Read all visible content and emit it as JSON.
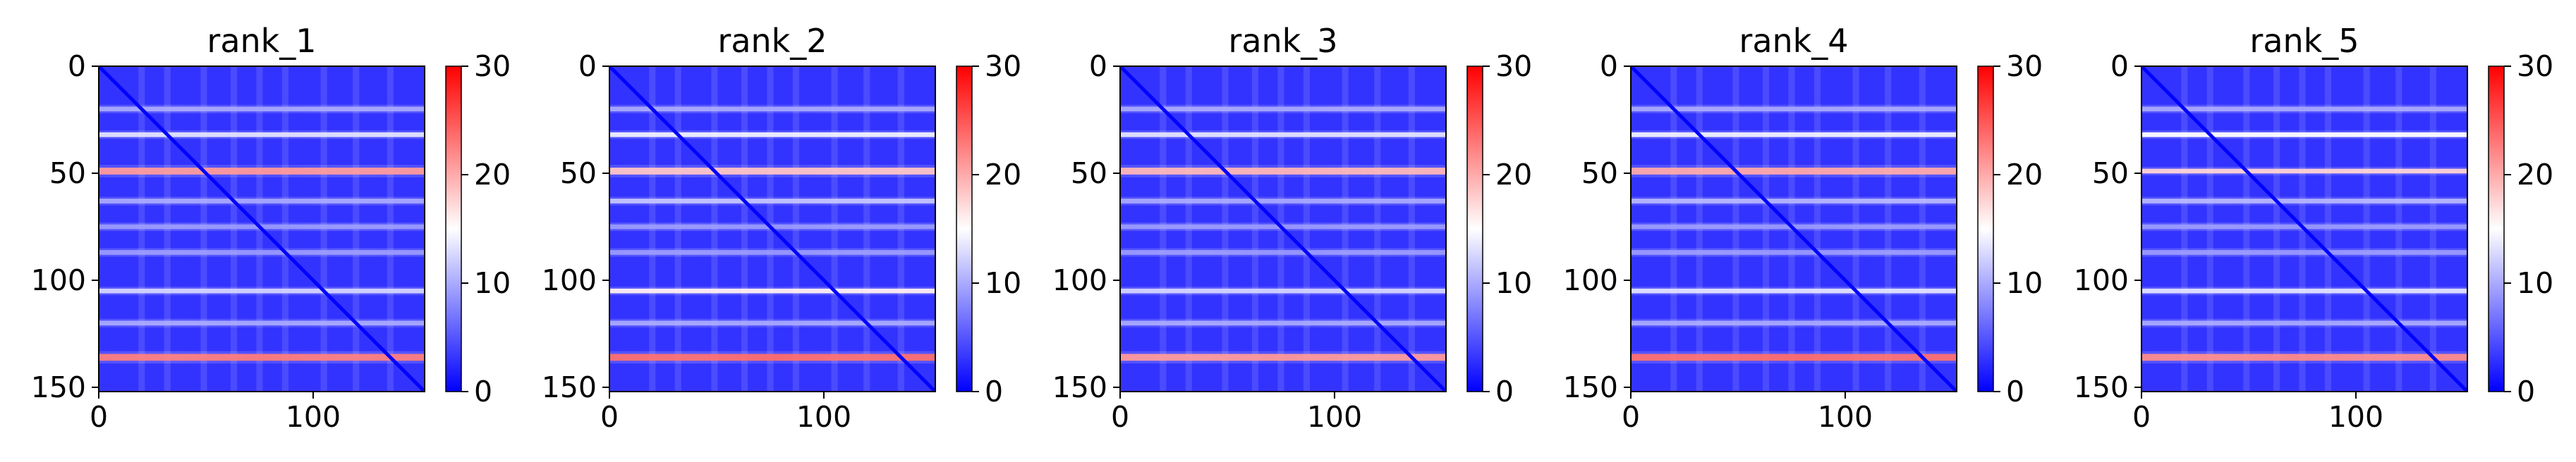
{
  "chart_data": [
    {
      "type": "heatmap",
      "title": "rank_1",
      "xlabel": "",
      "ylabel": "",
      "xlim": [
        0,
        152
      ],
      "ylim": [
        152,
        0
      ],
      "xticks": [
        0,
        100
      ],
      "yticks": [
        0,
        50,
        100,
        150
      ],
      "colorbar": {
        "range": [
          0,
          30
        ],
        "ticks": [
          0,
          10,
          20,
          30
        ],
        "colormap": "bwr"
      },
      "band_rows": [
        {
          "y": 49,
          "value": 22
        },
        {
          "y": 136,
          "value": 24
        },
        {
          "y": 32,
          "value": 13
        },
        {
          "y": 105,
          "value": 12
        },
        {
          "y": 20,
          "value": 9
        },
        {
          "y": 63,
          "value": 9
        },
        {
          "y": 75,
          "value": 8
        },
        {
          "y": 87,
          "value": 8
        },
        {
          "y": 120,
          "value": 9
        }
      ],
      "diagonal_value": 0
    },
    {
      "type": "heatmap",
      "title": "rank_2",
      "xlabel": "",
      "ylabel": "",
      "xlim": [
        0,
        152
      ],
      "ylim": [
        152,
        0
      ],
      "xticks": [
        0,
        100
      ],
      "yticks": [
        0,
        50,
        100,
        150
      ],
      "colorbar": {
        "range": [
          0,
          30
        ],
        "ticks": [
          0,
          10,
          20,
          30
        ],
        "colormap": "bwr"
      },
      "band_rows": [
        {
          "y": 49,
          "value": 19
        },
        {
          "y": 136,
          "value": 25
        },
        {
          "y": 32,
          "value": 14
        },
        {
          "y": 105,
          "value": 16
        },
        {
          "y": 20,
          "value": 9
        },
        {
          "y": 63,
          "value": 11
        },
        {
          "y": 75,
          "value": 8
        },
        {
          "y": 87,
          "value": 8
        },
        {
          "y": 120,
          "value": 9
        }
      ],
      "diagonal_value": 0
    },
    {
      "type": "heatmap",
      "title": "rank_3",
      "xlabel": "",
      "ylabel": "",
      "xlim": [
        0,
        152
      ],
      "ylim": [
        152,
        0
      ],
      "xticks": [
        0,
        100
      ],
      "yticks": [
        0,
        50,
        100,
        150
      ],
      "colorbar": {
        "range": [
          0,
          30
        ],
        "ticks": [
          0,
          10,
          20,
          30
        ],
        "colormap": "bwr"
      },
      "band_rows": [
        {
          "y": 49,
          "value": 20
        },
        {
          "y": 136,
          "value": 22
        },
        {
          "y": 32,
          "value": 13
        },
        {
          "y": 105,
          "value": 12
        },
        {
          "y": 20,
          "value": 9
        },
        {
          "y": 63,
          "value": 9
        },
        {
          "y": 75,
          "value": 8
        },
        {
          "y": 87,
          "value": 8
        },
        {
          "y": 120,
          "value": 9
        }
      ],
      "diagonal_value": 0
    },
    {
      "type": "heatmap",
      "title": "rank_4",
      "xlabel": "",
      "ylabel": "",
      "xlim": [
        0,
        152
      ],
      "ylim": [
        152,
        0
      ],
      "xticks": [
        0,
        100
      ],
      "yticks": [
        0,
        50,
        100,
        150
      ],
      "colorbar": {
        "range": [
          0,
          30
        ],
        "ticks": [
          0,
          10,
          20,
          30
        ],
        "colormap": "bwr"
      },
      "band_rows": [
        {
          "y": 49,
          "value": 21
        },
        {
          "y": 136,
          "value": 25
        },
        {
          "y": 32,
          "value": 14
        },
        {
          "y": 105,
          "value": 13
        },
        {
          "y": 20,
          "value": 9
        },
        {
          "y": 63,
          "value": 10
        },
        {
          "y": 75,
          "value": 8
        },
        {
          "y": 87,
          "value": 8
        },
        {
          "y": 120,
          "value": 9
        }
      ],
      "diagonal_value": 0
    },
    {
      "type": "heatmap",
      "title": "rank_5",
      "xlabel": "",
      "ylabel": "",
      "xlim": [
        0,
        152
      ],
      "ylim": [
        152,
        0
      ],
      "xticks": [
        0,
        100
      ],
      "yticks": [
        0,
        50,
        100,
        150
      ],
      "colorbar": {
        "range": [
          0,
          30
        ],
        "ticks": [
          0,
          10,
          20,
          30
        ],
        "colormap": "bwr"
      },
      "band_rows": [
        {
          "y": 49,
          "value": 18
        },
        {
          "y": 136,
          "value": 23
        },
        {
          "y": 32,
          "value": 15
        },
        {
          "y": 105,
          "value": 13
        },
        {
          "y": 20,
          "value": 9
        },
        {
          "y": 63,
          "value": 10
        },
        {
          "y": 75,
          "value": 8
        },
        {
          "y": 87,
          "value": 8
        },
        {
          "y": 120,
          "value": 9
        }
      ],
      "diagonal_value": 0
    }
  ]
}
